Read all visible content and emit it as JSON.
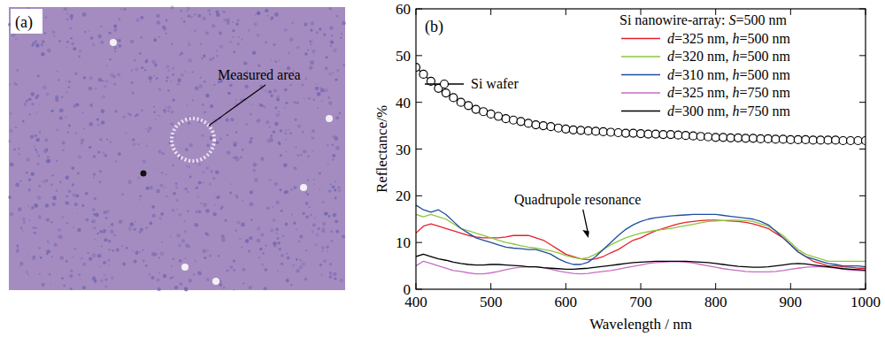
{
  "image_panel": {
    "label": "(a)",
    "annotation": "Measured area"
  },
  "chart_data": {
    "type": "line",
    "title": "(b)",
    "subtitle": "Si nanowire-array: S=500 nm",
    "x_label": "Wavelength / nm",
    "y_label": "Reflectance/%",
    "xlim": [
      400,
      1000
    ],
    "xticks": [
      400,
      500,
      600,
      700,
      800,
      900,
      1000
    ],
    "ylim": [
      0,
      60
    ],
    "yticks": [
      0,
      10,
      20,
      30,
      40,
      50,
      60
    ],
    "grid": false,
    "legend": "upper right",
    "annotations": [
      {
        "text": "Quadrupole resonance",
        "x": 630,
        "y": 11
      }
    ],
    "x": [
      400,
      410,
      420,
      430,
      440,
      450,
      460,
      470,
      480,
      490,
      500,
      510,
      520,
      530,
      540,
      550,
      560,
      570,
      580,
      590,
      600,
      610,
      620,
      630,
      640,
      650,
      660,
      670,
      680,
      690,
      700,
      710,
      720,
      730,
      740,
      750,
      760,
      770,
      780,
      790,
      800,
      810,
      820,
      830,
      840,
      850,
      860,
      870,
      880,
      890,
      900,
      910,
      920,
      930,
      940,
      950,
      960,
      970,
      980,
      990,
      1000
    ],
    "series": [
      {
        "name": "Si wafer",
        "color": "#000000",
        "marker": "circle",
        "line_style": "solid",
        "values": [
          47.5,
          46,
          44.5,
          43,
          42,
          41,
          40,
          39.3,
          38.5,
          38,
          37.5,
          37,
          36.5,
          36.2,
          35.9,
          35.5,
          35.2,
          35,
          34.8,
          34.5,
          34.3,
          34.1,
          34,
          33.9,
          33.8,
          33.7,
          33.6,
          33.5,
          33.4,
          33.4,
          33.3,
          33.2,
          33.2,
          33.1,
          33.1,
          33,
          32.9,
          32.8,
          32.7,
          32.6,
          32.5,
          32.5,
          32.4,
          32.4,
          32.3,
          32.3,
          32.2,
          32.2,
          32.1,
          32.1,
          32,
          32,
          32,
          31.9,
          31.9,
          31.9,
          31.9,
          31.8,
          31.8,
          31.8,
          31.8
        ]
      },
      {
        "name": "d=325 nm, h=500 nm",
        "color": "#e8202a",
        "marker": "none",
        "line_style": "solid",
        "values": [
          12,
          13.5,
          14,
          13.5,
          13,
          12.5,
          12,
          11.5,
          11.2,
          11,
          11,
          11,
          11.2,
          11.5,
          11.5,
          11.5,
          11,
          10.5,
          9.5,
          8.5,
          7.5,
          7,
          6.5,
          6.3,
          6.5,
          7,
          7.8,
          8.5,
          9.5,
          10.5,
          11,
          11.8,
          12.5,
          13,
          13.5,
          14,
          14.3,
          14.5,
          14.7,
          14.8,
          14.8,
          14.7,
          14.6,
          14.5,
          14.3,
          14,
          13.5,
          13,
          12,
          11,
          9.5,
          8,
          7,
          6,
          5.5,
          5,
          5,
          4.8,
          4.7,
          4.5,
          4.5
        ]
      },
      {
        "name": "d=320 nm, h=500 nm",
        "color": "#8dc63f",
        "marker": "none",
        "line_style": "solid",
        "values": [
          16,
          15.5,
          16,
          15.5,
          15,
          14,
          13,
          12.5,
          12,
          11.5,
          11,
          10.5,
          10,
          9.7,
          9.3,
          9,
          8.8,
          8.5,
          8.2,
          7.8,
          7.2,
          6.8,
          6.5,
          6.8,
          7.5,
          8.5,
          9.5,
          10.3,
          11,
          11.5,
          12,
          12.3,
          12.6,
          12.8,
          13,
          13.3,
          13.6,
          13.9,
          14.2,
          14.5,
          14.6,
          14.7,
          14.8,
          14.8,
          14.7,
          14.5,
          14,
          13.5,
          12.5,
          11.5,
          10,
          8.5,
          7.5,
          7,
          6.5,
          6,
          6,
          6,
          6,
          6,
          6
        ]
      },
      {
        "name": "d=310 nm, h=500 nm",
        "color": "#1f4e9e",
        "marker": "none",
        "line_style": "solid",
        "values": [
          18,
          17,
          16.5,
          17,
          16,
          14.5,
          13,
          12,
          11,
          10.5,
          10,
          9.5,
          9,
          8.8,
          8.7,
          8.5,
          8.5,
          8,
          7.5,
          6.5,
          5.8,
          5.3,
          5.3,
          5.8,
          7,
          8.5,
          10,
          11.5,
          12.8,
          13.8,
          14.5,
          15,
          15.3,
          15.5,
          15.7,
          15.8,
          15.9,
          16,
          16,
          16,
          16,
          15.8,
          15.6,
          15.4,
          15.2,
          15,
          14.5,
          13.8,
          12.5,
          11,
          9.5,
          8,
          7,
          6.5,
          6,
          5.5,
          5.3,
          5,
          5,
          5,
          4.8
        ]
      },
      {
        "name": "d=325 nm, h=750 nm",
        "color": "#c86dc2",
        "marker": "none",
        "line_style": "solid",
        "values": [
          5,
          6,
          5.5,
          5,
          4.5,
          4,
          3.8,
          3.5,
          3.3,
          3.3,
          3.5,
          3.8,
          4.2,
          4.5,
          4.7,
          4.8,
          4.8,
          4.6,
          4.3,
          3.9,
          3.6,
          3.4,
          3.3,
          3.4,
          3.6,
          3.8,
          4,
          4.3,
          4.6,
          4.9,
          5.2,
          5.5,
          5.7,
          5.8,
          5.9,
          5.9,
          5.8,
          5.6,
          5.3,
          5,
          4.7,
          4.4,
          4.2,
          4,
          3.8,
          3.7,
          3.7,
          3.7,
          3.8,
          4,
          4.3,
          4.5,
          4.7,
          4.8,
          4.8,
          4.7,
          4.5,
          4.3,
          4.1,
          4,
          3.9
        ]
      },
      {
        "name": "d=300 nm, h=750 nm",
        "color": "#000000",
        "marker": "none",
        "line_style": "solid",
        "values": [
          7,
          7.5,
          7,
          6.5,
          6.2,
          5.8,
          5.5,
          5.3,
          5.2,
          5.2,
          5.3,
          5.3,
          5.2,
          5.1,
          5,
          4.8,
          4.8,
          4.6,
          4.5,
          4.4,
          4.3,
          4.3,
          4.4,
          4.5,
          4.7,
          4.9,
          5.1,
          5.3,
          5.5,
          5.7,
          5.8,
          5.9,
          6,
          6,
          6,
          6,
          6,
          5.9,
          5.8,
          5.7,
          5.5,
          5.3,
          5.1,
          4.9,
          4.8,
          4.7,
          4.7,
          4.8,
          5,
          5.2,
          5.4,
          5.5,
          5.4,
          5.2,
          5,
          4.8,
          4.6,
          4.4,
          4.3,
          4.2,
          4.1
        ]
      }
    ]
  }
}
